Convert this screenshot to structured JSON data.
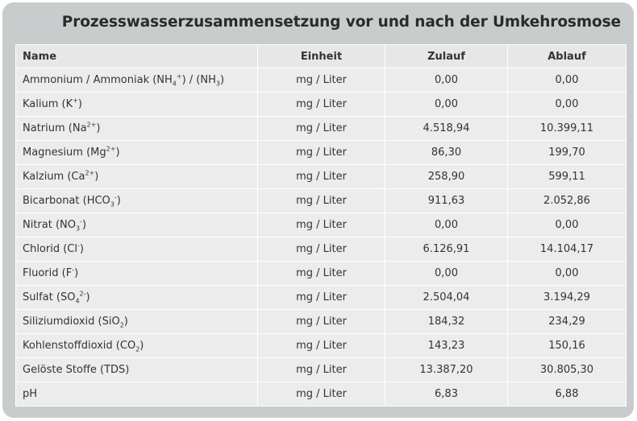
{
  "title": "Prozesswasserzusammensetzung vor und nach der Umkehrosmose",
  "columns": [
    "Name",
    "Einheit",
    "Zulauf",
    "Ablauf"
  ],
  "rows": [
    {
      "name": [
        "Ammonium / Ammoniak (NH",
        {
          "sub": "4"
        },
        {
          "sup": "+"
        },
        ") / (NH",
        {
          "sub": "3"
        },
        ")"
      ],
      "unit": "mg / Liter",
      "zulauf": "0,00",
      "ablauf": "0,00"
    },
    {
      "name": [
        "Kalium (K",
        {
          "sup": "+"
        },
        ")"
      ],
      "unit": "mg / Liter",
      "zulauf": "0,00",
      "ablauf": "0,00"
    },
    {
      "name": [
        "Natrium (Na",
        {
          "sup": "2+"
        },
        ")"
      ],
      "unit": "mg / Liter",
      "zulauf": "4.518,94",
      "ablauf": "10.399,11"
    },
    {
      "name": [
        "Magnesium (Mg",
        {
          "sup": "2+"
        },
        ")"
      ],
      "unit": "mg / Liter",
      "zulauf": "86,30",
      "ablauf": "199,70"
    },
    {
      "name": [
        "Kalzium (Ca",
        {
          "sup": "2+"
        },
        ")"
      ],
      "unit": "mg / Liter",
      "zulauf": "258,90",
      "ablauf": "599,11"
    },
    {
      "name": [
        "Bicarbonat (HCO",
        {
          "sub": "3"
        },
        {
          "sup": "-"
        },
        ")"
      ],
      "unit": "mg / Liter",
      "zulauf": "911,63",
      "ablauf": "2.052,86"
    },
    {
      "name": [
        "Nitrat (NO",
        {
          "sub": "3"
        },
        {
          "sup": "-"
        },
        ")"
      ],
      "unit": "mg / Liter",
      "zulauf": "0,00",
      "ablauf": "0,00"
    },
    {
      "name": [
        "Chlorid (Cl",
        {
          "sup": "-"
        },
        ")"
      ],
      "unit": "mg / Liter",
      "zulauf": "6.126,91",
      "ablauf": "14.104,17"
    },
    {
      "name": [
        "Fluorid (F",
        {
          "sup": "-"
        },
        ")"
      ],
      "unit": "mg / Liter",
      "zulauf": "0,00",
      "ablauf": "0,00"
    },
    {
      "name": [
        "Sulfat (SO",
        {
          "sub": "4"
        },
        {
          "sup": "2-"
        },
        ")"
      ],
      "unit": "mg / Liter",
      "zulauf": "2.504,04",
      "ablauf": "3.194,29"
    },
    {
      "name": [
        "Siliziumdioxid (SiO",
        {
          "sub": "2"
        },
        ")"
      ],
      "unit": "mg / Liter",
      "zulauf": "184,32",
      "ablauf": "234,29"
    },
    {
      "name": [
        "Kohlenstoffdioxid (CO",
        {
          "sub": "2"
        },
        ")"
      ],
      "unit": "mg / Liter",
      "zulauf": "143,23",
      "ablauf": "150,16"
    },
    {
      "name": [
        "Gelöste Stoffe (TDS)"
      ],
      "unit": "mg / Liter",
      "zulauf": "13.387,20",
      "ablauf": "30.805,30"
    },
    {
      "name": [
        "pH"
      ],
      "unit": "mg / Liter",
      "zulauf": "6,83",
      "ablauf": "6,88"
    }
  ]
}
